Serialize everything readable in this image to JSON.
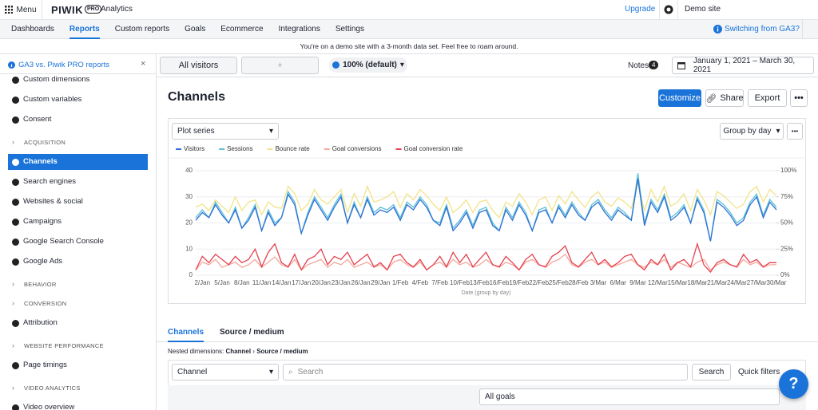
{
  "topbar": {
    "menu": "Menu",
    "logo": "PIWIK",
    "logo_badge": "PRO",
    "product": "Analytics",
    "upgrade": "Upgrade",
    "site": "Demo site"
  },
  "nav": {
    "tabs": [
      "Dashboards",
      "Reports",
      "Custom reports",
      "Goals",
      "Ecommerce",
      "Integrations",
      "Settings"
    ],
    "active": 1,
    "switch": "Switching from GA3?"
  },
  "notice": "You're on a demo site with a 3-month data set. Feel free to roam around.",
  "sidebar": {
    "header": "GA3 vs. Piwik PRO reports",
    "items": [
      {
        "label": "Custom dimensions"
      },
      {
        "label": "Custom variables"
      },
      {
        "label": "Consent"
      },
      {
        "section": "ACQUISITION"
      },
      {
        "label": "Channels",
        "active": true
      },
      {
        "label": "Search engines"
      },
      {
        "label": "Websites & social"
      },
      {
        "label": "Campaigns"
      },
      {
        "label": "Google Search Console"
      },
      {
        "label": "Google Ads"
      },
      {
        "section": "BEHAVIOR"
      },
      {
        "section": "CONVERSION"
      },
      {
        "label": "Attribution"
      },
      {
        "section": "WEBSITE PERFORMANCE"
      },
      {
        "label": "Page timings"
      },
      {
        "section": "VIDEO ANALYTICS"
      },
      {
        "label": "Video overview"
      }
    ]
  },
  "toolbar": {
    "segment": "All visitors",
    "plus": "+",
    "sampling": "100% (default)",
    "notes": "Notes",
    "notes_count": 4,
    "date_range": "January 1, 2021 – March 30, 2021"
  },
  "page": {
    "title": "Channels",
    "customize": "Customize",
    "share": "Share",
    "export": "Export"
  },
  "chart_controls": {
    "plot_series": "Plot series",
    "group_by": "Group by day"
  },
  "chart_data": {
    "type": "line",
    "x_label": "Date (group by day)",
    "categories": [
      null,
      "2/Jan",
      null,
      null,
      "5/Jan",
      null,
      null,
      "8/Jan",
      null,
      null,
      "11/Jan",
      null,
      null,
      "14/Jan",
      null,
      null,
      "17/Jan",
      null,
      null,
      "20/Jan",
      null,
      null,
      "23/Jan",
      null,
      null,
      "26/Jan",
      null,
      null,
      "29/Jan",
      null,
      null,
      "1/Feb",
      null,
      null,
      "4/Feb",
      null,
      null,
      "7/Feb",
      null,
      null,
      "10/Feb",
      null,
      null,
      "13/Feb",
      null,
      null,
      "16/Feb",
      null,
      null,
      "19/Feb",
      null,
      null,
      "22/Feb",
      null,
      null,
      "25/Feb",
      null,
      null,
      "28/Feb",
      null,
      null,
      "3/Mar",
      null,
      null,
      "6/Mar",
      null,
      null,
      "9/Mar",
      null,
      null,
      "12/Mar",
      null,
      null,
      "15/Mar",
      null,
      null,
      "18/Mar",
      null,
      null,
      "21/Mar",
      null,
      null,
      "24/Mar",
      null,
      null,
      "27/Mar",
      null,
      null,
      "30/Mar"
    ],
    "ylim": [
      0,
      40
    ],
    "yticks": [
      0,
      10,
      20,
      30,
      40
    ],
    "y2lim": [
      0,
      100
    ],
    "y2ticks": [
      {
        "value": 0,
        "label": "0%"
      },
      {
        "value": 25,
        "label": "25%"
      },
      {
        "value": 50,
        "label": "50%"
      },
      {
        "value": 75,
        "label": "75%"
      },
      {
        "value": 100,
        "label": "100%"
      }
    ],
    "grid": true,
    "series": [
      {
        "name": "Visitors",
        "color": "#2f6fd6",
        "values": [
          21,
          24,
          22,
          27,
          23,
          20,
          25,
          18,
          21,
          26,
          17,
          24,
          19,
          22,
          31,
          27,
          16,
          23,
          29,
          25,
          21,
          26,
          30,
          20,
          27,
          22,
          29,
          23,
          25,
          24,
          26,
          21,
          27,
          25,
          29,
          26,
          21,
          19,
          26,
          17,
          20,
          24,
          18,
          24,
          25,
          19,
          17,
          25,
          21,
          27,
          23,
          17,
          24,
          25,
          20,
          26,
          22,
          27,
          23,
          21,
          26,
          28,
          24,
          21,
          25,
          23,
          21,
          37,
          19,
          28,
          24,
          30,
          21,
          23,
          26,
          20,
          29,
          24,
          13,
          28,
          26,
          23,
          19,
          21,
          27,
          30,
          22,
          28,
          25
        ]
      },
      {
        "name": "Sessions",
        "color": "#5bc0d6",
        "values": [
          22,
          25,
          22,
          28,
          24,
          20,
          26,
          18,
          22,
          27,
          17,
          25,
          20,
          22,
          32,
          28,
          16,
          24,
          30,
          26,
          22,
          27,
          31,
          20,
          28,
          22,
          30,
          24,
          26,
          25,
          27,
          22,
          28,
          26,
          30,
          27,
          21,
          20,
          27,
          18,
          21,
          25,
          19,
          25,
          26,
          20,
          17,
          26,
          22,
          28,
          24,
          17,
          25,
          26,
          20,
          27,
          23,
          28,
          24,
          21,
          27,
          29,
          25,
          22,
          26,
          24,
          21,
          39,
          20,
          29,
          25,
          31,
          22,
          24,
          27,
          20,
          30,
          25,
          13,
          29,
          27,
          24,
          20,
          22,
          28,
          31,
          23,
          29,
          26
        ]
      },
      {
        "name": "Bounce rate",
        "color": "#f2e38a",
        "axis": "y2",
        "values": [
          65,
          68,
          62,
          72,
          66,
          60,
          75,
          62,
          70,
          72,
          58,
          70,
          65,
          64,
          85,
          78,
          62,
          68,
          82,
          72,
          68,
          75,
          82,
          60,
          78,
          66,
          85,
          70,
          72,
          75,
          80,
          65,
          78,
          72,
          82,
          76,
          68,
          62,
          75,
          60,
          65,
          72,
          60,
          70,
          72,
          62,
          55,
          70,
          66,
          78,
          70,
          58,
          72,
          75,
          62,
          76,
          68,
          80,
          72,
          65,
          75,
          80,
          70,
          66,
          74,
          70,
          64,
          88,
          62,
          82,
          70,
          85,
          66,
          70,
          78,
          62,
          82,
          72,
          58,
          80,
          76,
          70,
          64,
          68,
          80,
          85,
          70,
          82,
          76
        ]
      },
      {
        "name": "Goal conversions",
        "color": "#f3a99c",
        "values": [
          2,
          5,
          4,
          6,
          3,
          4,
          5,
          3,
          4,
          6,
          3,
          5,
          7,
          4,
          3,
          6,
          2,
          4,
          5,
          6,
          3,
          5,
          4,
          6,
          3,
          4,
          5,
          3,
          4,
          2,
          5,
          6,
          4,
          3,
          5,
          2,
          4,
          5,
          3,
          6,
          4,
          5,
          3,
          4,
          6,
          4,
          3,
          5,
          4,
          2,
          5,
          6,
          4,
          3,
          5,
          6,
          8,
          4,
          3,
          5,
          6,
          4,
          5,
          3,
          4,
          5,
          6,
          4,
          3,
          5,
          4,
          6,
          3,
          5,
          4,
          3,
          5,
          6,
          2,
          4,
          5,
          4,
          3,
          6,
          4,
          5,
          3,
          4,
          4
        ]
      },
      {
        "name": "Goal conversion rate",
        "color": "#e5404f",
        "axis": "y2",
        "values": [
          5,
          18,
          12,
          20,
          15,
          10,
          18,
          12,
          15,
          25,
          8,
          22,
          30,
          12,
          8,
          20,
          5,
          15,
          18,
          25,
          10,
          18,
          15,
          22,
          10,
          15,
          20,
          8,
          12,
          5,
          18,
          20,
          12,
          8,
          15,
          5,
          10,
          18,
          8,
          22,
          12,
          20,
          8,
          15,
          22,
          10,
          8,
          18,
          12,
          5,
          15,
          20,
          10,
          8,
          18,
          22,
          28,
          12,
          8,
          15,
          22,
          10,
          15,
          8,
          12,
          18,
          20,
          10,
          5,
          15,
          10,
          20,
          5,
          12,
          15,
          8,
          30,
          10,
          3,
          12,
          15,
          10,
          8,
          20,
          12,
          15,
          8,
          12,
          12
        ]
      }
    ]
  },
  "tabs": [
    "Channels",
    "Source / medium"
  ],
  "nested": {
    "prefix": "Nested dimensions:",
    "first": "Channel",
    "sep": "›",
    "second": "Source / medium"
  },
  "table_controls": {
    "dimension": "Channel",
    "search_placeholder": "Search",
    "search": "Search",
    "quick_filters": "Quick filters",
    "goals": "All goals"
  },
  "help": "?"
}
